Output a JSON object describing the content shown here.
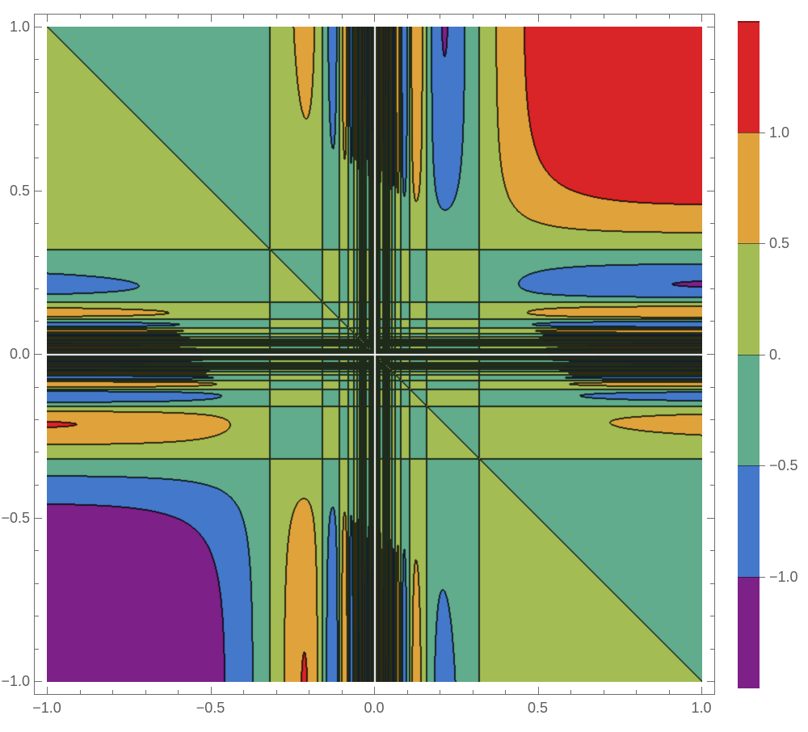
{
  "chart_data": {
    "type": "contour",
    "title": "",
    "function": "f(x,y) = (x + y) * sin(1/x) * sin(1/y)",
    "x_range": [
      -1,
      1
    ],
    "y_range": [
      -1,
      1
    ],
    "contour_levels": [
      -1.0,
      -0.5,
      0.0,
      0.5,
      1.0
    ],
    "band_colors_low_to_high": [
      "#7d2088",
      "#4478ca",
      "#60ac8c",
      "#a3bd54",
      "#e0a33c",
      "#d92428"
    ],
    "band_color_names_low_to_high": [
      "purple",
      "blue",
      "teal",
      "yellow-green",
      "orange",
      "red"
    ],
    "contour_line_color": "#1a1a1a",
    "undefined_axis_gap_color": "#ffffff",
    "background": "#ffffff",
    "grid": false,
    "axis": {
      "x_tick_values": [
        -1.0,
        -0.5,
        0.0,
        0.5,
        1.0
      ],
      "x_tick_labels": [
        "−1.0",
        "−0.5",
        "0.0",
        "0.5",
        "1.0"
      ],
      "y_tick_values": [
        1.0,
        0.5,
        0.0,
        -0.5,
        -1.0
      ],
      "y_tick_labels": [
        "1.0",
        "0.5",
        "0.0",
        "−0.5",
        "−1.0"
      ],
      "minor_tick_step": 0.1,
      "tick_color": "#6e6e6e",
      "label_color": "#5e5e5e"
    },
    "colorbar": {
      "position": "right",
      "value_range": [
        -1.5,
        1.5
      ],
      "segment_colors_top_to_bottom": [
        "#d92428",
        "#e0a33c",
        "#a3bd54",
        "#60ac8c",
        "#4478ca",
        "#7d2088"
      ],
      "tick_values": [
        1.0,
        0.5,
        0.0,
        -0.5,
        -1.0
      ],
      "tick_labels": [
        "1.0",
        "0.5",
        "0.",
        "−0.5",
        "−1.0"
      ]
    }
  }
}
